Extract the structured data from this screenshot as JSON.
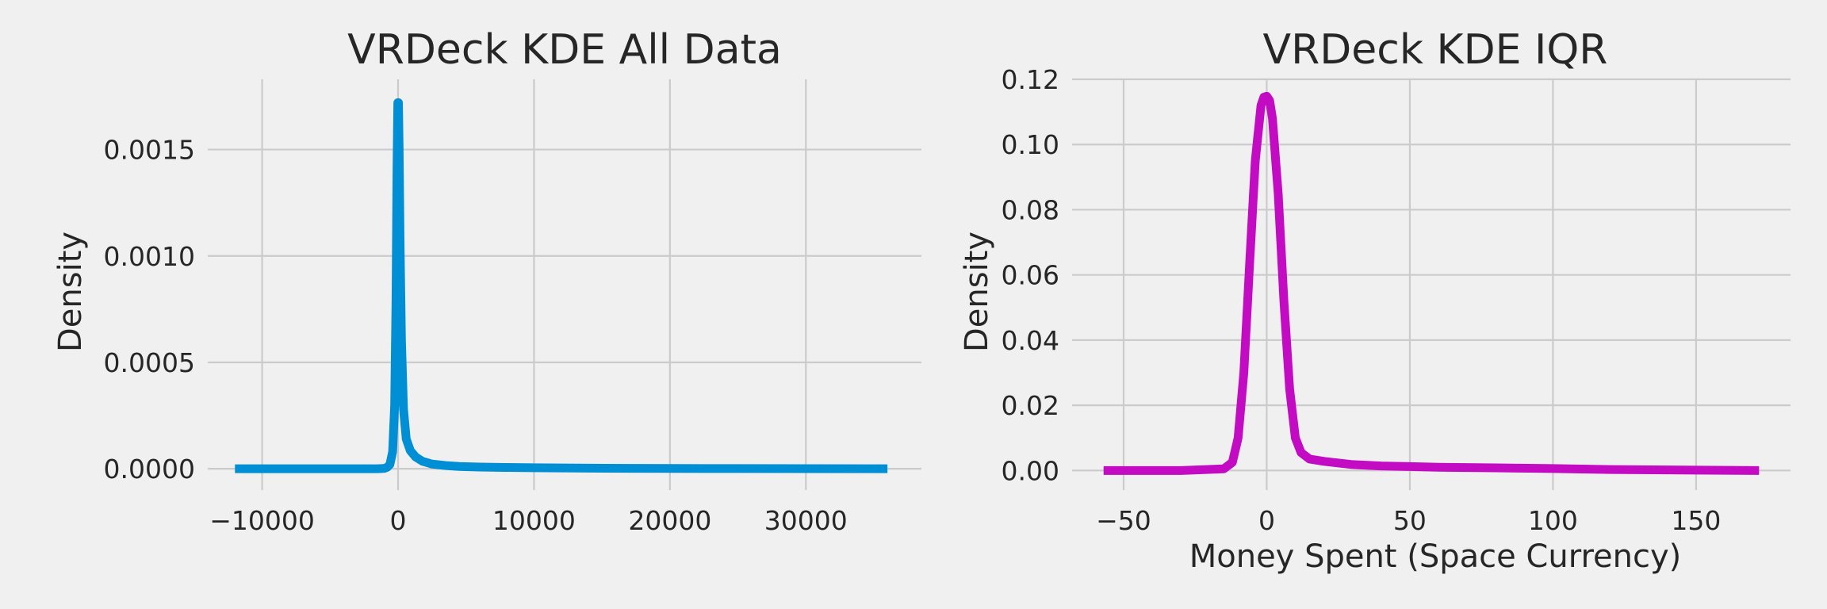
{
  "figure": {
    "background": "#f0f0f0",
    "grid_color": "#cbcbcb",
    "text_color": "#262626"
  },
  "chart_data": [
    {
      "type": "line",
      "title": "VRDeck KDE All Data",
      "xlabel": "",
      "ylabel": "Density",
      "xlim": [
        -14000,
        38500
      ],
      "ylim": [
        -0.0001,
        0.00183
      ],
      "xticks": [
        -10000,
        0,
        10000,
        20000,
        30000
      ],
      "xtick_labels": [
        "−10000",
        "0",
        "10000",
        "20000",
        "30000"
      ],
      "yticks": [
        0,
        0.0005,
        0.001,
        0.0015
      ],
      "ytick_labels": [
        "0.0000",
        "0.0005",
        "0.0010",
        "0.0015"
      ],
      "grid": true,
      "color": "#008fd5",
      "series": [
        {
          "x": [
            -12000,
            -3000,
            -1500,
            -1000,
            -800,
            -600,
            -400,
            -250,
            -150,
            -80,
            -20,
            30,
            80,
            150,
            250,
            400,
            600,
            900,
            1300,
            1800,
            2500,
            3500,
            4500,
            6000,
            8000,
            10000,
            12000,
            14000,
            17000,
            20000,
            25000,
            30000,
            36000
          ],
          "y": [
            0,
            0,
            0,
            2e-06,
            7e-06,
            2e-05,
            8e-05,
            0.0003,
            0.0008,
            0.0014,
            0.00172,
            0.00172,
            0.0015,
            0.00105,
            0.0006,
            0.00028,
            0.00014,
            8.5e-05,
            5.5e-05,
            3.5e-05,
            2.2e-05,
            1.5e-05,
            1.1e-05,
            8e-06,
            6e-06,
            5e-06,
            4e-06,
            3e-06,
            2e-06,
            1.5e-06,
            1e-06,
            5e-07,
            0
          ]
        }
      ]
    },
    {
      "type": "line",
      "title": "VRDeck KDE IQR",
      "xlabel": "Money Spent (Space Currency)",
      "ylabel": "Density",
      "xlim": [
        -68,
        183
      ],
      "ylim": [
        -0.006,
        0.12
      ],
      "xticks": [
        -50,
        0,
        50,
        100,
        150
      ],
      "xtick_labels": [
        "−50",
        "0",
        "50",
        "100",
        "150"
      ],
      "yticks": [
        0,
        0.02,
        0.04,
        0.06,
        0.08,
        0.1,
        0.12
      ],
      "ytick_labels": [
        "0.00",
        "0.02",
        "0.04",
        "0.06",
        "0.08",
        "0.10",
        "0.12"
      ],
      "grid": true,
      "color": "#c20bc2",
      "series": [
        {
          "x": [
            -57,
            -30,
            -15,
            -12,
            -10,
            -8,
            -6,
            -4,
            -2,
            -1,
            0,
            1,
            2,
            4,
            6,
            8,
            10,
            12,
            15,
            20,
            30,
            40,
            50,
            60,
            80,
            100,
            120,
            150,
            172
          ],
          "y": [
            0,
            0,
            0.0005,
            0.0025,
            0.01,
            0.03,
            0.063,
            0.095,
            0.112,
            0.1145,
            0.1148,
            0.1135,
            0.108,
            0.085,
            0.052,
            0.025,
            0.01,
            0.0055,
            0.0035,
            0.0028,
            0.0018,
            0.0014,
            0.0012,
            0.001,
            0.0008,
            0.0006,
            0.0003,
            0.0001,
            0
          ]
        }
      ]
    }
  ]
}
